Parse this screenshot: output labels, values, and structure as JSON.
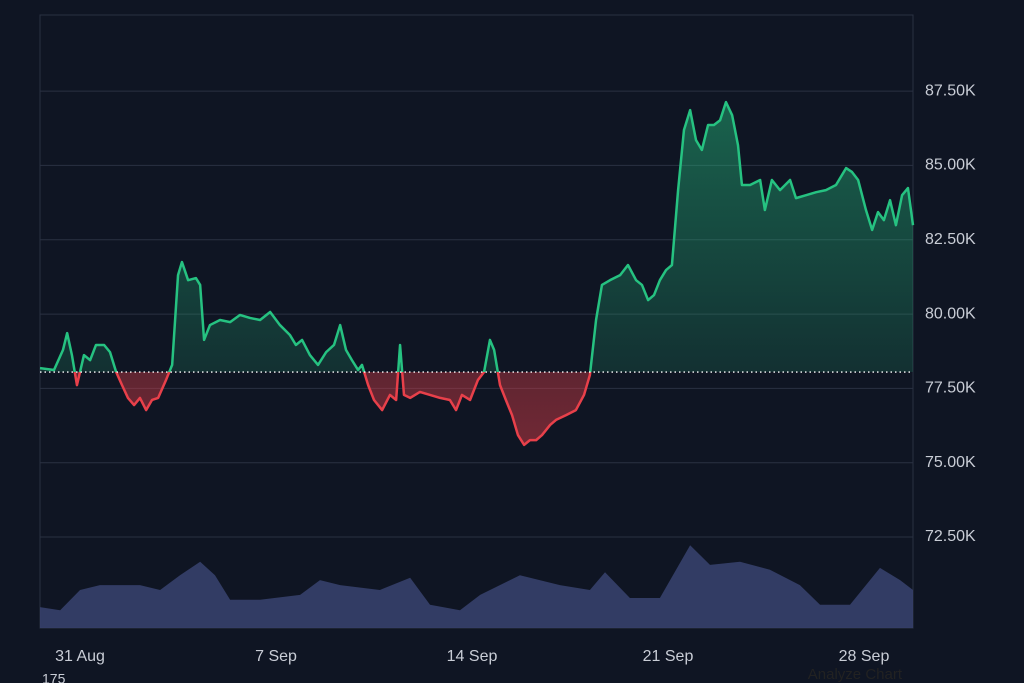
{
  "chart_data": {
    "type": "baseline",
    "xlim": [
      -1.43,
      29.75
    ],
    "xticks": [
      {
        "value": 0,
        "label": "31 Aug"
      },
      {
        "value": 7,
        "label": "7 Sep"
      },
      {
        "value": 14,
        "label": "14 Sep"
      },
      {
        "value": 21,
        "label": "21 Sep"
      },
      {
        "value": 28,
        "label": "28 Sep"
      }
    ],
    "ylim": [
      69440,
      90060
    ],
    "yticks": [
      {
        "value": 72500,
        "label": "72.50K"
      },
      {
        "value": 75000,
        "label": "75.00K"
      },
      {
        "value": 77500,
        "label": "77.50K"
      },
      {
        "value": 80000,
        "label": "80.00K"
      },
      {
        "value": 82500,
        "label": "82.50K"
      },
      {
        "value": 85000,
        "label": "85.00K"
      },
      {
        "value": 87500,
        "label": "87.50K"
      }
    ],
    "y2lim": [
      0,
      100
    ],
    "baseline": 78050,
    "grid": true,
    "up_color": "#26c281",
    "down_color": "#e8404a",
    "series": [
      {
        "x": [
          -1.43,
          -0.93,
          -0.61,
          -0.46,
          -0.29,
          -0.11,
          0.14,
          0.36,
          0.57,
          0.86,
          1.07,
          1.29,
          1.5,
          1.71,
          1.93,
          2.14,
          2.36,
          2.57,
          2.79,
          3.07,
          3.29,
          3.5,
          3.64,
          3.86,
          4.14,
          4.29,
          4.43,
          4.64,
          5,
          5.36,
          5.71,
          6.07,
          6.43,
          6.79,
          7.14,
          7.5,
          7.71,
          7.93,
          8.21,
          8.5,
          8.79,
          9.07,
          9.29,
          9.5,
          9.71,
          9.93,
          10.07,
          10.29,
          10.5,
          10.79,
          11.07,
          11.29,
          11.43,
          11.57,
          11.79,
          12.14,
          12.5,
          12.86,
          13.21,
          13.43,
          13.64,
          13.93,
          14.21,
          14.43,
          14.64,
          14.79,
          15,
          15.21,
          15.43,
          15.64,
          15.86,
          16.07,
          16.29,
          16.5,
          16.79,
          17,
          17.36,
          17.71,
          18,
          18.21,
          18.43,
          18.64,
          18.93,
          19.29,
          19.57,
          19.86,
          20.07,
          20.29,
          20.5,
          20.71,
          20.93,
          21.14,
          21.36,
          21.57,
          21.79,
          22,
          22.21,
          22.43,
          22.64,
          22.86,
          23.07,
          23.29,
          23.5,
          23.64,
          23.93,
          24.29,
          24.46,
          24.71,
          25,
          25.36,
          25.57,
          25.93,
          26.29,
          26.64,
          27,
          27.36,
          27.57,
          27.79,
          28.07,
          28.29,
          28.5,
          28.71,
          28.93,
          29.14,
          29.36,
          29.57,
          29.75
        ],
        "values": [
          78180,
          78120,
          78790,
          79360,
          78620,
          77610,
          78620,
          78450,
          78960,
          78960,
          78720,
          78050,
          77610,
          77180,
          76940,
          77180,
          76770,
          77110,
          77180,
          77780,
          78290,
          81310,
          81750,
          81140,
          81210,
          80980,
          79130,
          79630,
          79800,
          79730,
          79970,
          79870,
          79800,
          80070,
          79630,
          79290,
          78960,
          79130,
          78620,
          78290,
          78720,
          78960,
          79630,
          78790,
          78450,
          78120,
          78290,
          77610,
          77110,
          76770,
          77280,
          77110,
          78960,
          77280,
          77180,
          77380,
          77280,
          77180,
          77110,
          76770,
          77280,
          77110,
          77780,
          78050,
          79130,
          78790,
          77610,
          77110,
          76600,
          75930,
          75600,
          75760,
          75760,
          75930,
          76270,
          76440,
          76600,
          76770,
          77280,
          77950,
          79800,
          80980,
          81140,
          81310,
          81650,
          81140,
          80980,
          80470,
          80640,
          81140,
          81480,
          81650,
          84170,
          86190,
          86860,
          85850,
          85520,
          86360,
          86360,
          86520,
          87130,
          86690,
          85680,
          84340,
          84340,
          84510,
          83500,
          84510,
          84170,
          84510,
          83900,
          84000,
          84100,
          84170,
          84340,
          84910,
          84780,
          84510,
          83500,
          82830,
          83430,
          83160,
          83830,
          82990,
          84000,
          84240,
          82990
        ],
        "color": "#26c281"
      },
      {
        "axis": "y2",
        "color": "#36406b",
        "x": [
          -1.43,
          -0.71,
          0,
          0.71,
          2.14,
          2.86,
          3.57,
          4.29,
          4.82,
          5.36,
          6.43,
          7.86,
          8.57,
          9.29,
          10.71,
          11.79,
          12.5,
          13.57,
          14.29,
          15.71,
          17.14,
          18.21,
          18.75,
          19.64,
          20.71,
          21.79,
          22.5,
          23.57,
          24.64,
          25.71,
          26.43,
          27.5,
          28.57,
          29.29,
          29.75
        ],
        "values": [
          3.4,
          2.9,
          6.2,
          7.0,
          7.0,
          6.2,
          8.6,
          10.8,
          8.6,
          4.6,
          4.6,
          5.4,
          7.8,
          7.0,
          6.2,
          8.2,
          3.8,
          2.9,
          5.4,
          8.6,
          7.0,
          6.2,
          9.1,
          4.9,
          4.9,
          13.5,
          10.3,
          10.8,
          9.5,
          7.0,
          3.8,
          3.8,
          9.8,
          7.8,
          6.2
        ]
      }
    ],
    "annotations": [
      "175",
      "Analyze Chart"
    ]
  }
}
